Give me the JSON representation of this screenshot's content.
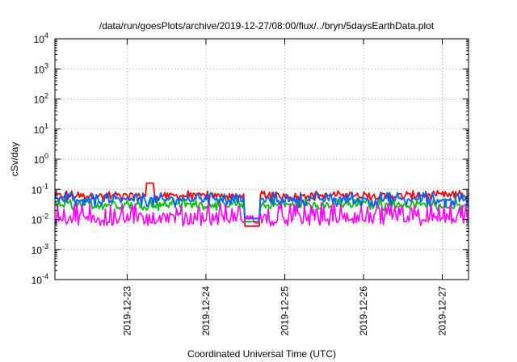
{
  "chart_data": {
    "type": "line",
    "title": "/data/run/goesPlots/archive/2019-12-27/08:00/flux/../bryn/5daysEarthData.plot",
    "xlabel": "Coordinated Universal Time (UTC)",
    "ylabel": "cSv/day",
    "yscale": "log",
    "ylim": [
      0.0001,
      10000
    ],
    "xlim": [
      "2019-12-22 02:00",
      "2019-12-27 08:00"
    ],
    "grid": true,
    "x_ticks": [
      "2019-12-23",
      "2019-12-24",
      "2019-12-25",
      "2019-12-26",
      "2019-12-27"
    ],
    "y_ticks": [
      {
        "base": "10",
        "exp": "-4"
      },
      {
        "base": "10",
        "exp": "-3"
      },
      {
        "base": "10",
        "exp": "-2"
      },
      {
        "base": "10",
        "exp": "-1"
      },
      {
        "base": "10",
        "exp": "0"
      },
      {
        "base": "10",
        "exp": "1"
      },
      {
        "base": "10",
        "exp": "2"
      },
      {
        "base": "10",
        "exp": "3"
      },
      {
        "base": "10",
        "exp": "4"
      }
    ],
    "series": [
      {
        "color": "#ff0000",
        "baseline": 0.06,
        "min": 0.04,
        "max": 0.09
      },
      {
        "color": "#00c000",
        "baseline": 0.03,
        "min": 0.02,
        "max": 0.05
      },
      {
        "color": "#0060ff",
        "baseline": 0.045,
        "min": 0.025,
        "max": 0.08
      },
      {
        "color": "#ff00ff",
        "baseline": 0.012,
        "min": 0.006,
        "max": 0.035
      }
    ],
    "events": [
      {
        "x": "2019-12-23 07:00",
        "y": 0.16
      },
      {
        "x": "2019-12-24 14:00",
        "y": 0.006
      }
    ]
  }
}
